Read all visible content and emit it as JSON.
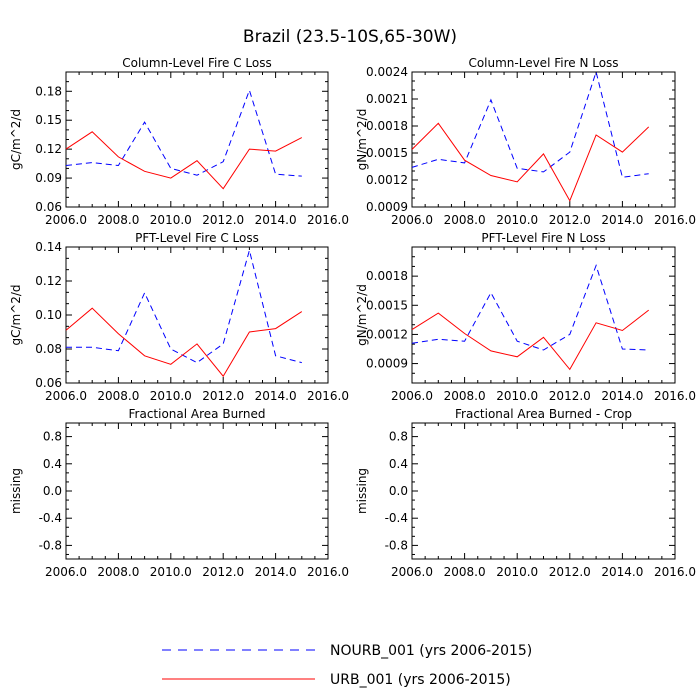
{
  "figure": {
    "title": "Brazil (23.5-10S,65-30W)"
  },
  "legend": {
    "items": [
      {
        "label": "NOURB_001 (yrs 2006-2015)",
        "color": "#0000ff",
        "dashed": true
      },
      {
        "label": "URB_001 (yrs 2006-2015)",
        "color": "#ff0000",
        "dashed": false
      }
    ]
  },
  "chart_data": [
    {
      "type": "line",
      "title": "Column-Level Fire C Loss",
      "xlabel": "",
      "ylabel": "gC/m^2/d",
      "xlim": [
        2006.0,
        2016.0
      ],
      "ylim": [
        0.06,
        0.2
      ],
      "xticks": [
        "2006.0",
        "2008.0",
        "2010.0",
        "2012.0",
        "2014.0",
        "2016.0"
      ],
      "yticks": [
        0.06,
        0.09,
        0.12,
        0.15,
        0.18
      ],
      "ytick_labels": [
        "0.06",
        "0.09",
        "0.12",
        "0.15",
        "0.18"
      ],
      "x": [
        2006,
        2007,
        2008,
        2009,
        2010,
        2011,
        2012,
        2013,
        2014,
        2015
      ],
      "series": [
        {
          "name": "NOURB_001 (yrs 2006-2015)",
          "color": "#0000ff",
          "dashed": true,
          "values": [
            0.103,
            0.106,
            0.103,
            0.148,
            0.1,
            0.093,
            0.107,
            0.181,
            0.094,
            0.092
          ]
        },
        {
          "name": "URB_001 (yrs 2006-2015)",
          "color": "#ff0000",
          "dashed": false,
          "values": [
            0.12,
            0.138,
            0.112,
            0.097,
            0.09,
            0.108,
            0.079,
            0.12,
            0.118,
            0.132
          ]
        }
      ]
    },
    {
      "type": "line",
      "title": "Column-Level Fire N Loss",
      "xlabel": "",
      "ylabel": "gN/m^2/d",
      "xlim": [
        2006.0,
        2016.0
      ],
      "ylim": [
        0.0009,
        0.0024
      ],
      "xticks": [
        "2006.0",
        "2008.0",
        "2010.0",
        "2012.0",
        "2014.0",
        "2016.0"
      ],
      "yticks": [
        0.0009,
        0.0012,
        0.0015,
        0.0018,
        0.0021,
        0.0024
      ],
      "ytick_labels": [
        "0.0009",
        "0.0012",
        "0.0015",
        "0.0018",
        "0.0021",
        "0.0024"
      ],
      "x": [
        2006,
        2007,
        2008,
        2009,
        2010,
        2011,
        2012,
        2013,
        2014,
        2015
      ],
      "series": [
        {
          "name": "NOURB_001 (yrs 2006-2015)",
          "color": "#0000ff",
          "dashed": true,
          "values": [
            0.00134,
            0.00143,
            0.00139,
            0.00209,
            0.00133,
            0.00129,
            0.00151,
            0.0024,
            0.00123,
            0.00127
          ]
        },
        {
          "name": "URB_001 (yrs 2006-2015)",
          "color": "#ff0000",
          "dashed": false,
          "values": [
            0.00154,
            0.00183,
            0.00142,
            0.00125,
            0.00118,
            0.00149,
            0.00097,
            0.0017,
            0.00151,
            0.00179
          ]
        }
      ]
    },
    {
      "type": "line",
      "title": "PFT-Level Fire C Loss",
      "xlabel": "",
      "ylabel": "gC/m^2/d",
      "xlim": [
        2006.0,
        2016.0
      ],
      "ylim": [
        0.06,
        0.14
      ],
      "xticks": [
        "2006.0",
        "2008.0",
        "2010.0",
        "2012.0",
        "2014.0",
        "2016.0"
      ],
      "yticks": [
        0.06,
        0.08,
        0.1,
        0.12,
        0.14
      ],
      "ytick_labels": [
        "0.06",
        "0.08",
        "0.10",
        "0.12",
        "0.14"
      ],
      "x": [
        2006,
        2007,
        2008,
        2009,
        2010,
        2011,
        2012,
        2013,
        2014,
        2015
      ],
      "series": [
        {
          "name": "NOURB_001 (yrs 2006-2015)",
          "color": "#0000ff",
          "dashed": true,
          "values": [
            0.081,
            0.081,
            0.079,
            0.113,
            0.08,
            0.072,
            0.083,
            0.138,
            0.076,
            0.072
          ]
        },
        {
          "name": "URB_001 (yrs 2006-2015)",
          "color": "#ff0000",
          "dashed": false,
          "values": [
            0.091,
            0.104,
            0.089,
            0.076,
            0.071,
            0.083,
            0.064,
            0.09,
            0.092,
            0.102
          ]
        }
      ]
    },
    {
      "type": "line",
      "title": "PFT-Level Fire N Loss",
      "xlabel": "",
      "ylabel": "gN/m^2/d",
      "xlim": [
        2006.0,
        2016.0
      ],
      "ylim": [
        0.0007,
        0.0021
      ],
      "xticks": [
        "2006.0",
        "2008.0",
        "2010.0",
        "2012.0",
        "2014.0",
        "2016.0"
      ],
      "yticks": [
        0.0009,
        0.0012,
        0.0015,
        0.0018
      ],
      "ytick_labels": [
        "0.0009",
        "0.0012",
        "0.0015",
        "0.0018"
      ],
      "x": [
        2006,
        2007,
        2008,
        2009,
        2010,
        2011,
        2012,
        2013,
        2014,
        2015
      ],
      "series": [
        {
          "name": "NOURB_001 (yrs 2006-2015)",
          "color": "#0000ff",
          "dashed": true,
          "values": [
            0.00111,
            0.00115,
            0.00113,
            0.00163,
            0.00113,
            0.00104,
            0.0012,
            0.00191,
            0.00105,
            0.00104
          ]
        },
        {
          "name": "URB_001 (yrs 2006-2015)",
          "color": "#ff0000",
          "dashed": false,
          "values": [
            0.00125,
            0.00142,
            0.00121,
            0.00103,
            0.00097,
            0.00117,
            0.00084,
            0.00132,
            0.00124,
            0.00145
          ]
        }
      ]
    },
    {
      "type": "line",
      "title": "Fractional Area Burned",
      "xlabel": "",
      "ylabel": "missing",
      "xlim": [
        2006.0,
        2016.0
      ],
      "ylim": [
        -1.0,
        1.0
      ],
      "xticks": [
        "2006.0",
        "2008.0",
        "2010.0",
        "2012.0",
        "2014.0",
        "2016.0"
      ],
      "yticks": [
        -0.8,
        -0.4,
        0.0,
        0.4,
        0.8
      ],
      "ytick_labels": [
        "-0.8",
        "-0.4",
        "0.0",
        "0.4",
        "0.8"
      ],
      "x": [],
      "series": []
    },
    {
      "type": "line",
      "title": "Fractional Area Burned - Crop",
      "xlabel": "",
      "ylabel": "missing",
      "xlim": [
        2006.0,
        2016.0
      ],
      "ylim": [
        -1.0,
        1.0
      ],
      "xticks": [
        "2006.0",
        "2008.0",
        "2010.0",
        "2012.0",
        "2014.0",
        "2016.0"
      ],
      "yticks": [
        -0.8,
        -0.4,
        0.0,
        0.4,
        0.8
      ],
      "ytick_labels": [
        "-0.8",
        "-0.4",
        "0.0",
        "0.4",
        "0.8"
      ],
      "x": [],
      "series": []
    }
  ]
}
